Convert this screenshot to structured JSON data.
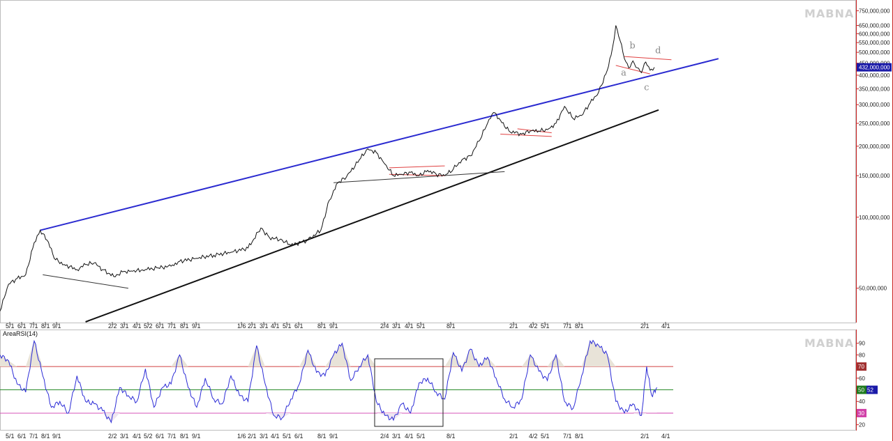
{
  "watermark_top": "MABNA",
  "watermark_bottom": "MABNA",
  "indicator_label": "AreaRSI(14)",
  "colors": {
    "price": "#111111",
    "blue_channel": "#2a2ad0",
    "black_trend": "#111111",
    "red_lines": "#e04040",
    "rsi": "#2b2bd6",
    "rsi_70": "#d04040",
    "rsi_50": "#2a8a2a",
    "rsi_30": "#d040b0",
    "axis_border": "#cc2222"
  },
  "chart_data": [
    {
      "type": "line",
      "scale": "log",
      "ylim": [
        36000000,
        800000000
      ],
      "y_ticks": [
        {
          "value": 750000000,
          "label": "750,000,000"
        },
        {
          "value": 650000000,
          "label": "650,000,000"
        },
        {
          "value": 600000000,
          "label": "600,000,000"
        },
        {
          "value": 550000000,
          "label": "550,000,000"
        },
        {
          "value": 500000000,
          "label": "500,000,000"
        },
        {
          "value": 450000000,
          "label": "450,000,000"
        },
        {
          "value": 400000000,
          "label": "400,000,000"
        },
        {
          "value": 350000000,
          "label": "350,000,000"
        },
        {
          "value": 300000000,
          "label": "300,000,000"
        },
        {
          "value": 250000000,
          "label": "250,000,000"
        },
        {
          "value": 200000000,
          "label": "200,000,000"
        },
        {
          "value": 150000000,
          "label": "150,000,000"
        },
        {
          "value": 100000000,
          "label": "100,000,000"
        },
        {
          "value": 50000000,
          "label": "50,000,000"
        }
      ],
      "last_value": 432000000,
      "last_value_label": "432,000,000",
      "x_ticks": [
        "5/1",
        "6/1",
        "7/1",
        "8/1",
        "9/1",
        "2/2",
        "3/1",
        "4/1",
        "5/2",
        "6/1",
        "7/1",
        "8/1",
        "9/1",
        "1/6",
        "2/1",
        "3/1",
        "4/1",
        "5/1",
        "6/1",
        "8/1",
        "9/1",
        "2/4",
        "3/1",
        "4/1",
        "5/1",
        "8/1",
        "2/1",
        "4/2",
        "5/1",
        "7/1",
        "8/1",
        "2/1",
        "4/1"
      ],
      "x_range": [
        0,
        100
      ],
      "price_points": [
        [
          0,
          40000000
        ],
        [
          1,
          52000000
        ],
        [
          2,
          55000000
        ],
        [
          3,
          57000000
        ],
        [
          4,
          78000000
        ],
        [
          4.7,
          88000000
        ],
        [
          5.5,
          80000000
        ],
        [
          6.5,
          66000000
        ],
        [
          7.5,
          63000000
        ],
        [
          9,
          60000000
        ],
        [
          10,
          63000000
        ],
        [
          11,
          64000000
        ],
        [
          12,
          60000000
        ],
        [
          13.3,
          56000000
        ],
        [
          14.5,
          59000000
        ],
        [
          15.5,
          59000000
        ],
        [
          17,
          60000000
        ],
        [
          18.5,
          61000000
        ],
        [
          20,
          62000000
        ],
        [
          21,
          65000000
        ],
        [
          23,
          67000000
        ],
        [
          25,
          69000000
        ],
        [
          27,
          71000000
        ],
        [
          29,
          74000000
        ],
        [
          30.5,
          90000000
        ],
        [
          31.5,
          82000000
        ],
        [
          33,
          80000000
        ],
        [
          34,
          76000000
        ],
        [
          36,
          80000000
        ],
        [
          37.5,
          88000000
        ],
        [
          38.5,
          118000000
        ],
        [
          39.5,
          140000000
        ],
        [
          40.5,
          148000000
        ],
        [
          42,
          175000000
        ],
        [
          43,
          195000000
        ],
        [
          44,
          188000000
        ],
        [
          45,
          168000000
        ],
        [
          46,
          150000000
        ],
        [
          47,
          152000000
        ],
        [
          48,
          155000000
        ],
        [
          49,
          150000000
        ],
        [
          50,
          158000000
        ],
        [
          51,
          152000000
        ],
        [
          52,
          150000000
        ],
        [
          53,
          160000000
        ],
        [
          54,
          175000000
        ],
        [
          55,
          182000000
        ],
        [
          56,
          210000000
        ],
        [
          57,
          250000000
        ],
        [
          57.7,
          278000000
        ],
        [
          58.5,
          258000000
        ],
        [
          59.5,
          232000000
        ],
        [
          61,
          225000000
        ],
        [
          62,
          232000000
        ],
        [
          63,
          232000000
        ],
        [
          64,
          235000000
        ],
        [
          65,
          250000000
        ],
        [
          66,
          295000000
        ],
        [
          67,
          262000000
        ],
        [
          68,
          270000000
        ],
        [
          69,
          305000000
        ],
        [
          70,
          340000000
        ],
        [
          71,
          420000000
        ],
        [
          71.6,
          520000000
        ],
        [
          72,
          650000000
        ],
        [
          72.5,
          560000000
        ],
        [
          73,
          470000000
        ],
        [
          73.5,
          430000000
        ],
        [
          74,
          460000000
        ],
        [
          74.5,
          430000000
        ],
        [
          75,
          410000000
        ],
        [
          75.5,
          455000000
        ],
        [
          76,
          420000000
        ],
        [
          76.5,
          432000000
        ]
      ],
      "annotations": {
        "blue_channel": [
          [
            4.7,
            88000000
          ],
          [
            84,
            470000000
          ]
        ],
        "black_trend": [
          [
            10,
            36000000
          ],
          [
            77,
            285000000
          ]
        ],
        "neckline_1": [
          [
            5,
            57000000
          ],
          [
            15,
            50000000
          ]
        ],
        "neckline_2": [
          [
            39,
            140000000
          ],
          [
            59,
            156000000
          ]
        ],
        "red_flag_1": {
          "top": [
            [
              45.5,
              162000000
            ],
            [
              52,
              165000000
            ]
          ],
          "bottom": [
            [
              45.5,
              152000000
            ],
            [
              52,
              150000000
            ]
          ]
        },
        "red_flag_2": {
          "top": [
            [
              60.5,
              237000000
            ],
            [
              64.5,
              228000000
            ]
          ],
          "bottom": [
            [
              58.5,
              225000000
            ],
            [
              64.5,
              220000000
            ]
          ]
        },
        "triangle": {
          "top": [
            [
              73,
              480000000
            ],
            [
              78.5,
              465000000
            ]
          ],
          "bottom": [
            [
              72,
              440000000
            ],
            [
              76,
              405000000
            ]
          ]
        }
      },
      "wave_labels": [
        {
          "text": "a",
          "x": 72.6,
          "y": 398000000
        },
        {
          "text": "b",
          "x": 73.6,
          "y": 520000000
        },
        {
          "text": "c",
          "x": 75.3,
          "y": 345000000
        },
        {
          "text": "d",
          "x": 76.6,
          "y": 495000000
        }
      ]
    },
    {
      "type": "area",
      "name": "AreaRSI(14)",
      "ylim": [
        15,
        100
      ],
      "y_ticks": [
        {
          "value": 90,
          "label": "90"
        },
        {
          "value": 80,
          "label": "80"
        },
        {
          "value": 70,
          "label": "70"
        },
        {
          "value": 60,
          "label": "60"
        },
        {
          "value": 50,
          "label": "50"
        },
        {
          "value": 40,
          "label": "40"
        },
        {
          "value": 30,
          "label": "30"
        },
        {
          "value": 20,
          "label": "20"
        }
      ],
      "levels": [
        {
          "value": 70,
          "label": "70"
        },
        {
          "value": 50,
          "label": "50"
        },
        {
          "value": 30,
          "label": "30"
        }
      ],
      "last_value_label": "52",
      "x_range": [
        0,
        100
      ],
      "rsi_points": [
        [
          0,
          80
        ],
        [
          1,
          75
        ],
        [
          2,
          55
        ],
        [
          3,
          48
        ],
        [
          4,
          92
        ],
        [
          5,
          62
        ],
        [
          6,
          35
        ],
        [
          7,
          40
        ],
        [
          8,
          30
        ],
        [
          9,
          62
        ],
        [
          10,
          40
        ],
        [
          11,
          38
        ],
        [
          12,
          32
        ],
        [
          13,
          22
        ],
        [
          14,
          52
        ],
        [
          15,
          45
        ],
        [
          16,
          40
        ],
        [
          17,
          68
        ],
        [
          18,
          35
        ],
        [
          19,
          52
        ],
        [
          20,
          55
        ],
        [
          21,
          80
        ],
        [
          22,
          52
        ],
        [
          23,
          35
        ],
        [
          24,
          60
        ],
        [
          25,
          42
        ],
        [
          26,
          38
        ],
        [
          27,
          62
        ],
        [
          28,
          45
        ],
        [
          29,
          40
        ],
        [
          30,
          88
        ],
        [
          31,
          55
        ],
        [
          32,
          28
        ],
        [
          33,
          26
        ],
        [
          34,
          42
        ],
        [
          35,
          55
        ],
        [
          36,
          84
        ],
        [
          37,
          65
        ],
        [
          38,
          62
        ],
        [
          39,
          80
        ],
        [
          40,
          90
        ],
        [
          41,
          58
        ],
        [
          42,
          70
        ],
        [
          43,
          80
        ],
        [
          44,
          40
        ],
        [
          45,
          28
        ],
        [
          46,
          24
        ],
        [
          47,
          38
        ],
        [
          48,
          30
        ],
        [
          49,
          56
        ],
        [
          50,
          60
        ],
        [
          51,
          48
        ],
        [
          52,
          42
        ],
        [
          53,
          82
        ],
        [
          54,
          66
        ],
        [
          55,
          85
        ],
        [
          56,
          70
        ],
        [
          57,
          78
        ],
        [
          58,
          60
        ],
        [
          59,
          42
        ],
        [
          60,
          35
        ],
        [
          61,
          42
        ],
        [
          62,
          80
        ],
        [
          63,
          66
        ],
        [
          64,
          58
        ],
        [
          65,
          80
        ],
        [
          66,
          40
        ],
        [
          67,
          34
        ],
        [
          68,
          62
        ],
        [
          69,
          92
        ],
        [
          70,
          88
        ],
        [
          71,
          80
        ],
        [
          72,
          40
        ],
        [
          73,
          30
        ],
        [
          74,
          38
        ],
        [
          75,
          28
        ],
        [
          75.6,
          70
        ],
        [
          76.2,
          45
        ],
        [
          76.8,
          52
        ]
      ]
    }
  ]
}
